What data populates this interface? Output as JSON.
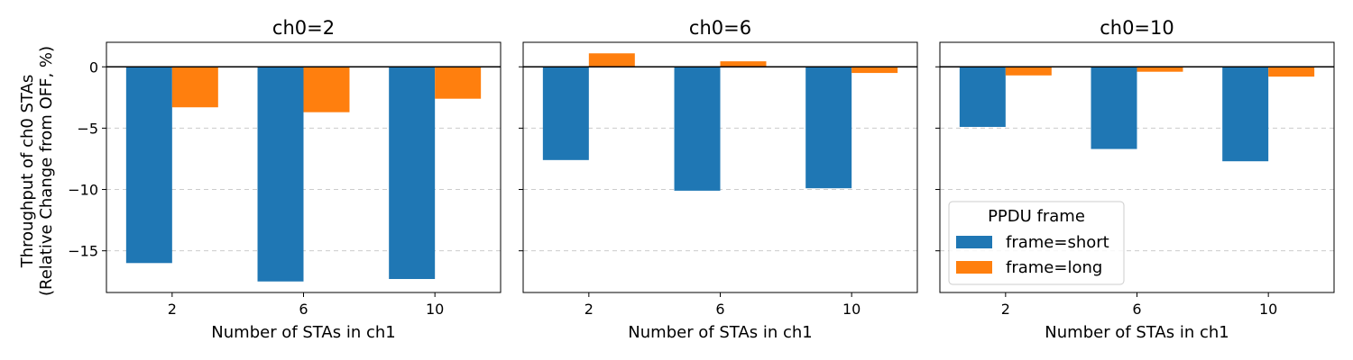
{
  "figure": {
    "ylabel_line1": "Throughput of ch0 STAs",
    "ylabel_line2": "(Relative Change from OFF, %)",
    "legend": {
      "title": "PPDU frame",
      "placement": "lower-left of third panel"
    }
  },
  "colors": {
    "short": "#1f77b4",
    "long": "#ff7f0e",
    "grid": "#cccccc",
    "zero_line": "#000000"
  },
  "chart_data": [
    {
      "type": "bar",
      "title": "ch0=2",
      "xlabel": "Number of STAs in ch1",
      "ylabel": "Throughput of ch0 STAs (Relative Change from OFF, %)",
      "categories": [
        "2",
        "6",
        "10"
      ],
      "series": [
        {
          "name": "frame=short",
          "values": [
            -16.0,
            -17.5,
            -17.3
          ]
        },
        {
          "name": "frame=long",
          "values": [
            -3.3,
            -3.7,
            -2.6
          ]
        }
      ],
      "ylim": [
        -18.4,
        2.0
      ],
      "yticks": [
        0,
        -5,
        -10,
        -15
      ],
      "grid": "y-dashed"
    },
    {
      "type": "bar",
      "title": "ch0=6",
      "xlabel": "Number of STAs in ch1",
      "categories": [
        "2",
        "6",
        "10"
      ],
      "series": [
        {
          "name": "frame=short",
          "values": [
            -7.6,
            -10.1,
            -9.9
          ]
        },
        {
          "name": "frame=long",
          "values": [
            1.1,
            0.45,
            -0.5
          ]
        }
      ],
      "ylim": [
        -18.4,
        2.0
      ],
      "yticks": [
        0,
        -5,
        -10,
        -15
      ],
      "grid": "y-dashed"
    },
    {
      "type": "bar",
      "title": "ch0=10",
      "xlabel": "Number of STAs in ch1",
      "categories": [
        "2",
        "6",
        "10"
      ],
      "series": [
        {
          "name": "frame=short",
          "values": [
            -4.9,
            -6.7,
            -7.7
          ]
        },
        {
          "name": "frame=long",
          "values": [
            -0.7,
            -0.4,
            -0.8
          ]
        }
      ],
      "ylim": [
        -18.4,
        2.0
      ],
      "yticks": [
        0,
        -5,
        -10,
        -15
      ],
      "grid": "y-dashed"
    }
  ]
}
